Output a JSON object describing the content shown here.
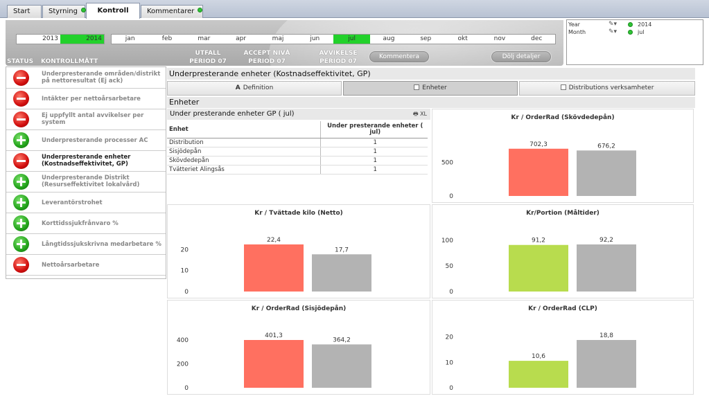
{
  "tabs": [
    {
      "label": "Start",
      "dot": false,
      "active": false
    },
    {
      "label": "Styrning",
      "dot": true,
      "active": false
    },
    {
      "label": "Kontroll",
      "dot": false,
      "active": true
    },
    {
      "label": "Kommentarer",
      "dot": true,
      "active": false
    }
  ],
  "years": [
    "2013",
    "2014"
  ],
  "selected_year": "2014",
  "months": [
    "jan",
    "feb",
    "mar",
    "apr",
    "maj",
    "jun",
    "jul",
    "aug",
    "sep",
    "okt",
    "nov",
    "dec"
  ],
  "selected_month": "jul",
  "header": {
    "status": "STATUS",
    "kontrollmatt": "KONTROLLMÅTT",
    "utfall": [
      "UTFALL",
      "PERIOD 07"
    ],
    "accept": [
      "ACCEPT NIVÅ",
      "PERIOD 07"
    ],
    "avvikelse": [
      "AVVIKELSE",
      "PERIOD 07"
    ],
    "kommentera": "Kommentera",
    "dolj": "Dölj detaljer"
  },
  "current_selections": [
    {
      "field": "Year",
      "value": "2014"
    },
    {
      "field": "Month",
      "value": "jul"
    }
  ],
  "kpis": [
    {
      "label": "Underpresterande områden/distrikt på nettoresultat (Ej ack)",
      "status": "neg",
      "active": false
    },
    {
      "label": "Intäkter per nettoårsarbetare",
      "status": "neg",
      "active": false
    },
    {
      "label": "Ej uppfyllt antal avvikelser per system",
      "status": "neg",
      "active": false
    },
    {
      "label": "Underpresterande processer AC",
      "status": "pos",
      "active": false
    },
    {
      "label": "Underpresterande enheter (Kostnadseffektivitet, GP)",
      "status": "neg",
      "active": true
    },
    {
      "label": "Underpresterande Distrikt (Resurseffektivitet lokalvård)",
      "status": "pos",
      "active": false
    },
    {
      "label": "Leverantörstrohet",
      "status": "pos",
      "active": false
    },
    {
      "label": "Korttidssjukfrånvaro %",
      "status": "pos",
      "active": false
    },
    {
      "label": "Långtidssjukskrivna medarbetare %",
      "status": "pos",
      "active": false
    },
    {
      "label": "Nettoårsarbetare",
      "status": "neg",
      "active": false
    }
  ],
  "main_title": "Underpresterande enheter  (Kostnadseffektivitet, GP)",
  "subtabs": [
    {
      "label": "Definition",
      "icon": "A",
      "active": false
    },
    {
      "label": "Enheter",
      "icon": "checkbox",
      "active": true
    },
    {
      "label": "Distributions verksamheter",
      "icon": "checkbox",
      "active": false
    }
  ],
  "section_title": "Enheter",
  "table": {
    "title": "Under presterande enheter GP ( jul)",
    "xl": "XL",
    "col1": "Enhet",
    "col2": "Under presterande enheter ( jul)",
    "rows": [
      {
        "enhet": "Distribution",
        "value": "1"
      },
      {
        "enhet": "Sisjödepån",
        "value": "1"
      },
      {
        "enhet": "Skövdedepån",
        "value": "1"
      },
      {
        "enhet": "Tvätteriet Alingsås",
        "value": "1"
      }
    ]
  },
  "chart_data": [
    {
      "type": "bar",
      "title": "Kr / OrderRad (Skövdedepån)",
      "values": [
        702.3,
        676.2
      ],
      "labels": [
        "702,3",
        "676,2"
      ],
      "colors": [
        "#ff7060",
        "#b3b3b3"
      ],
      "ylim": [
        0,
        700
      ],
      "yticks": [
        0,
        500
      ]
    },
    {
      "type": "bar",
      "title": "Kr / Tvättade kilo (Netto)",
      "values": [
        22.4,
        17.7
      ],
      "labels": [
        "22,4",
        "17,7"
      ],
      "colors": [
        "#ff7060",
        "#b3b3b3"
      ],
      "ylim": [
        0,
        22.4
      ],
      "yticks": [
        0,
        10,
        20
      ]
    },
    {
      "type": "bar",
      "title": "Kr/Portion (Måltider)",
      "values": [
        91.2,
        92.2
      ],
      "labels": [
        "91,2",
        "92,2"
      ],
      "colors": [
        "#b8dc4e",
        "#b3b3b3"
      ],
      "ylim": [
        0,
        92.2
      ],
      "yticks": [
        0,
        50,
        100
      ]
    },
    {
      "type": "bar",
      "title": "Kr / OrderRad (Sisjödepån)",
      "values": [
        401.3,
        364.2
      ],
      "labels": [
        "401,3",
        "364,2"
      ],
      "colors": [
        "#ff7060",
        "#b3b3b3"
      ],
      "ylim": [
        0,
        401.3
      ],
      "yticks": [
        0,
        200,
        400
      ]
    },
    {
      "type": "bar",
      "title": "Kr / OrderRad (CLP)",
      "values": [
        10.6,
        18.8
      ],
      "labels": [
        "10,6",
        "18,8"
      ],
      "colors": [
        "#b8dc4e",
        "#b3b3b3"
      ],
      "ylim": [
        0,
        18.8
      ],
      "yticks": [
        0,
        10,
        20
      ]
    }
  ]
}
